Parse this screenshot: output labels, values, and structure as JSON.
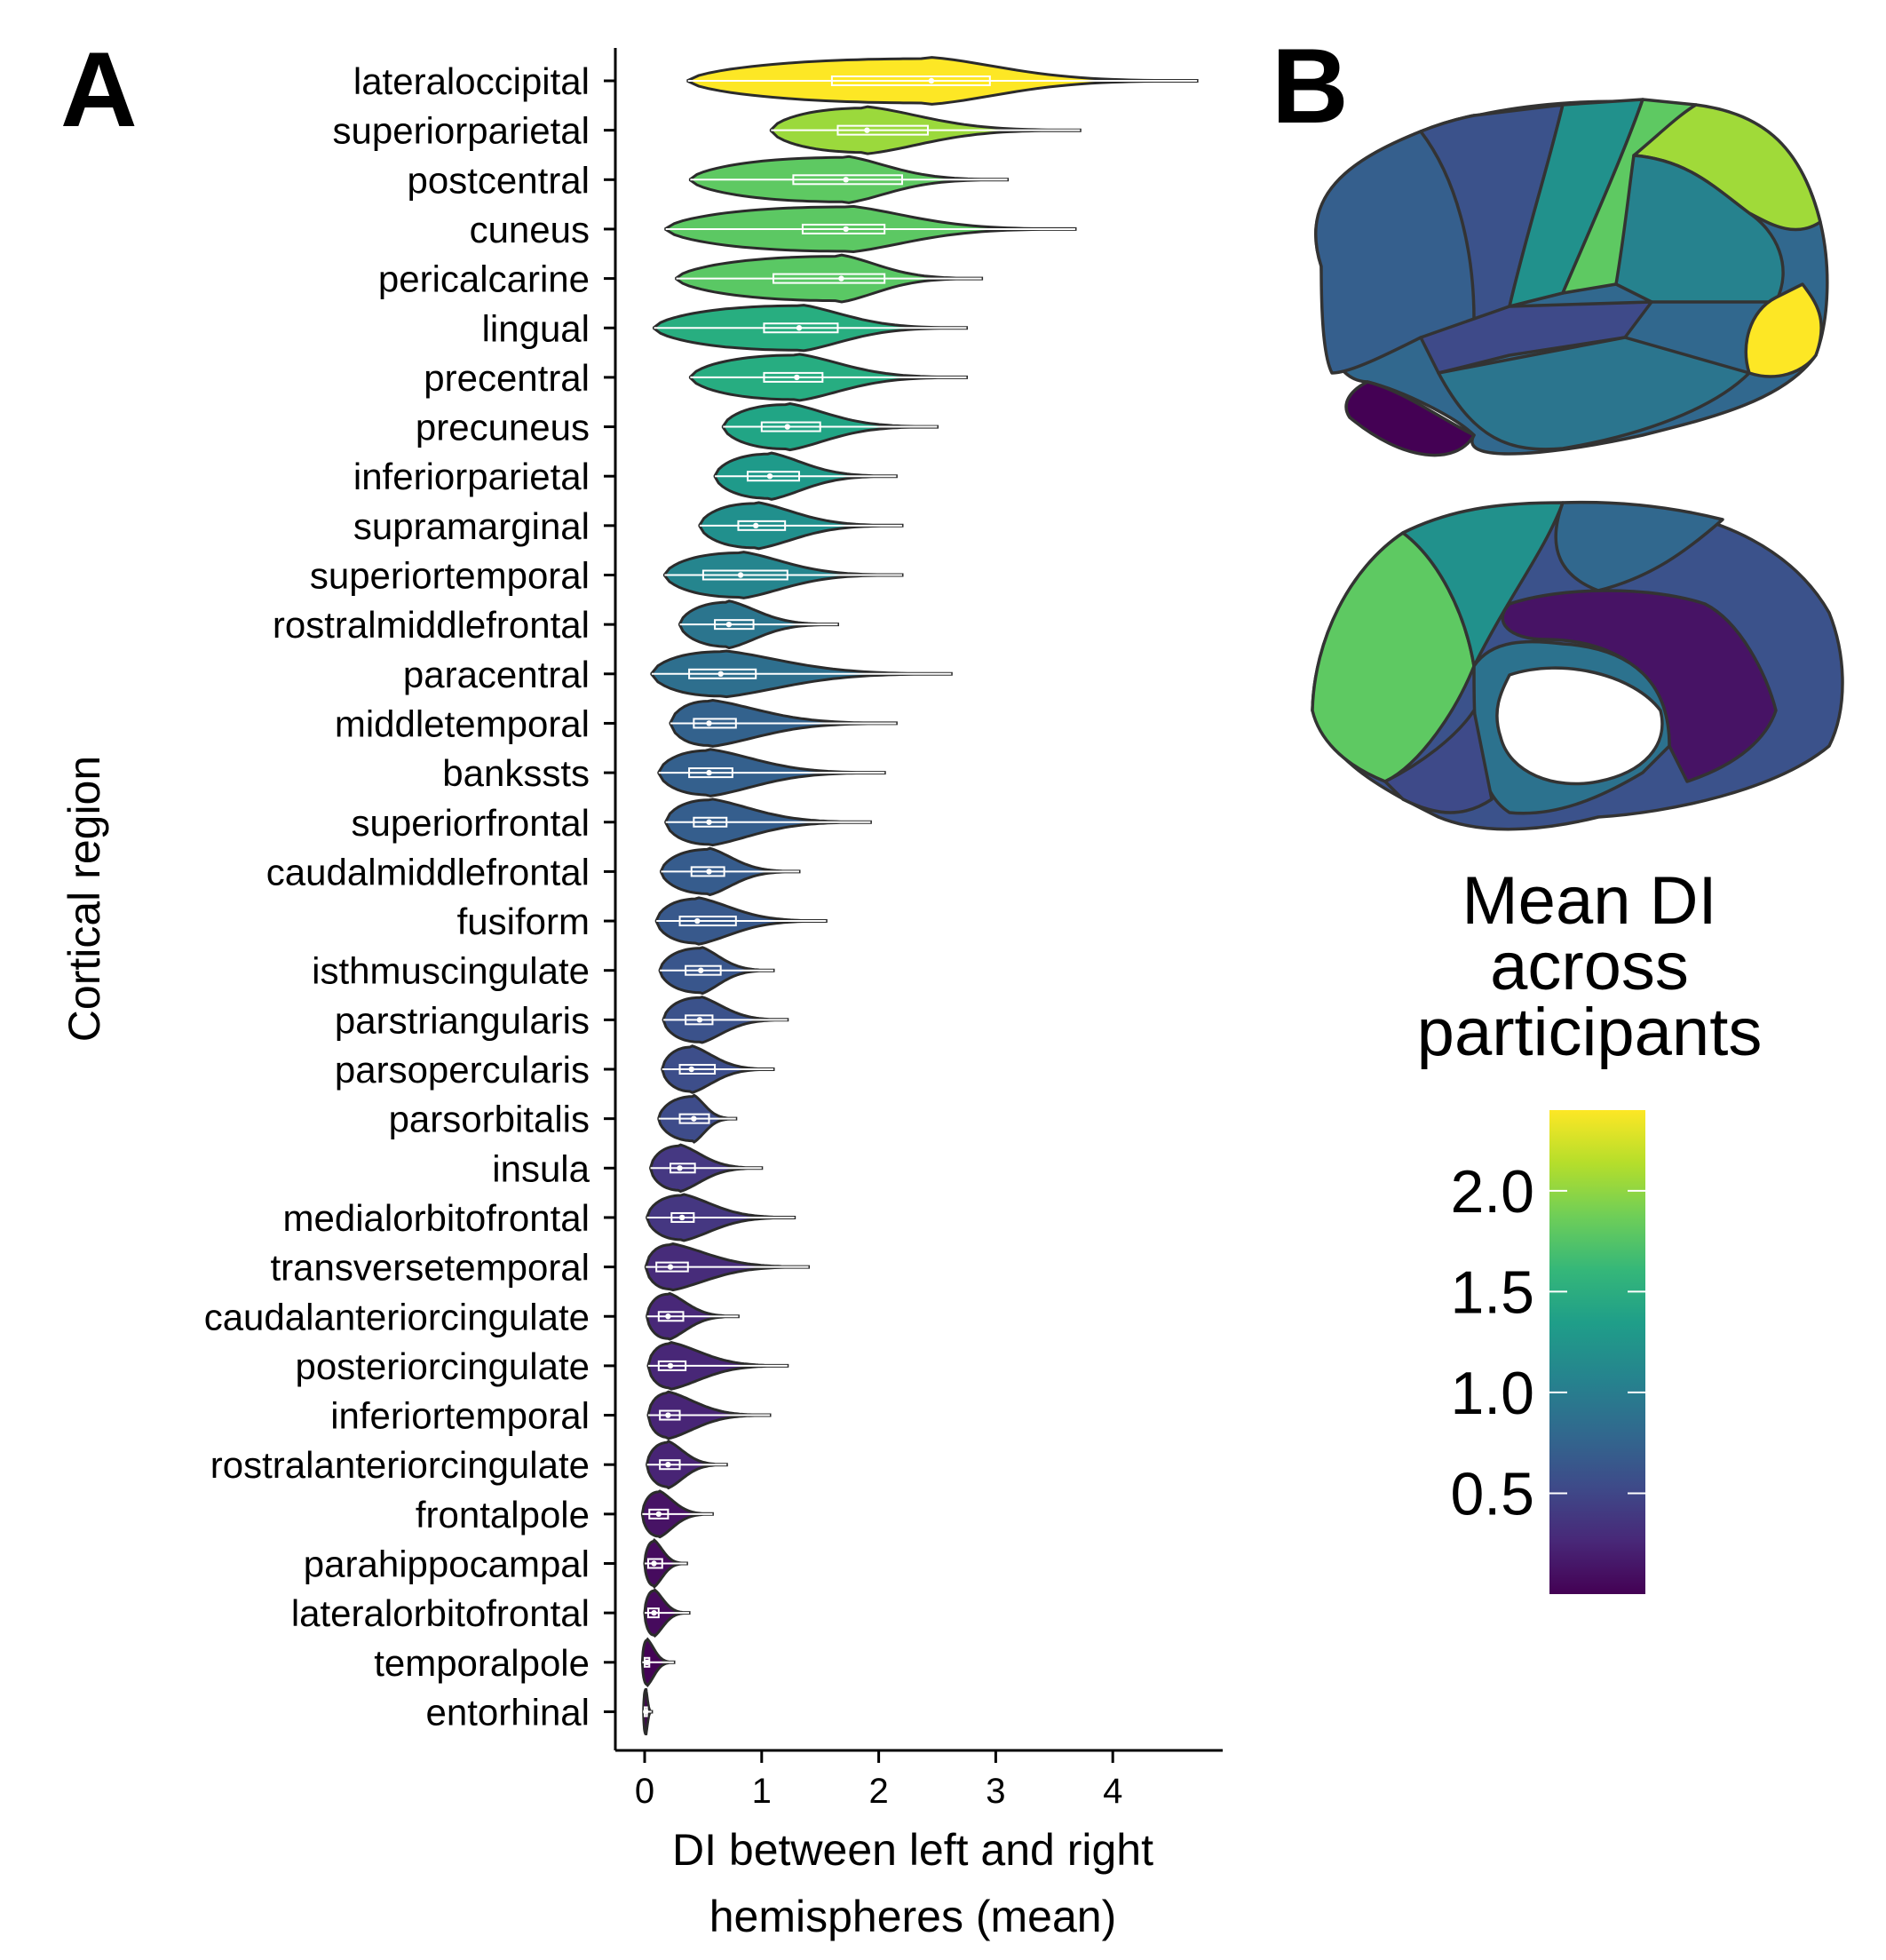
{
  "panel_a_letter": "A",
  "panel_b_letter": "B",
  "chart_data": {
    "type": "violin",
    "title": "",
    "xlabel_line1": "DI between left and right",
    "xlabel_line2": "hemispheres (mean)",
    "ylabel": "Cortical region",
    "xlim": [
      -0.25,
      4.95
    ],
    "xticks": [
      0,
      1,
      2,
      3,
      4
    ],
    "grid": false,
    "regions": [
      {
        "name": "lateraloccipital",
        "min": 0.37,
        "q1": 1.6,
        "median": 2.45,
        "q3": 2.95,
        "max": 4.72,
        "mean": 2.42,
        "color": "#fde725"
      },
      {
        "name": "superiorparietal",
        "min": 1.08,
        "q1": 1.65,
        "median": 1.9,
        "q3": 2.42,
        "max": 3.72,
        "mean": 2.08,
        "color": "#9bd93c"
      },
      {
        "name": "postcentral",
        "min": 0.39,
        "q1": 1.27,
        "median": 1.72,
        "q3": 2.2,
        "max": 3.1,
        "mean": 1.74,
        "color": "#5ec962"
      },
      {
        "name": "cuneus",
        "min": 0.18,
        "q1": 1.35,
        "median": 1.72,
        "q3": 2.05,
        "max": 3.68,
        "mean": 1.71,
        "color": "#5cc863"
      },
      {
        "name": "pericalcarine",
        "min": 0.27,
        "q1": 1.1,
        "median": 1.68,
        "q3": 2.05,
        "max": 2.88,
        "mean": 1.62,
        "color": "#5ac864"
      },
      {
        "name": "lingual",
        "min": 0.08,
        "q1": 1.02,
        "median": 1.32,
        "q3": 1.65,
        "max": 2.75,
        "mean": 1.32,
        "color": "#28ae80"
      },
      {
        "name": "precentral",
        "min": 0.39,
        "q1": 1.02,
        "median": 1.3,
        "q3": 1.52,
        "max": 2.75,
        "mean": 1.29,
        "color": "#27ad81"
      },
      {
        "name": "precuneus",
        "min": 0.67,
        "q1": 1.0,
        "median": 1.22,
        "q3": 1.5,
        "max": 2.5,
        "mean": 1.25,
        "color": "#21a585"
      },
      {
        "name": "inferiorparietal",
        "min": 0.6,
        "q1": 0.88,
        "median": 1.07,
        "q3": 1.32,
        "max": 2.15,
        "mean": 1.12,
        "color": "#1f9a8a"
      },
      {
        "name": "supramarginal",
        "min": 0.47,
        "q1": 0.8,
        "median": 0.95,
        "q3": 1.2,
        "max": 2.2,
        "mean": 1.02,
        "color": "#21908d"
      },
      {
        "name": "superiortemporal",
        "min": 0.17,
        "q1": 0.5,
        "median": 0.82,
        "q3": 1.22,
        "max": 2.2,
        "mean": 0.88,
        "color": "#25858e"
      },
      {
        "name": "rostralmiddlefrontal",
        "min": 0.3,
        "q1": 0.6,
        "median": 0.72,
        "q3": 0.93,
        "max": 1.65,
        "mean": 0.78,
        "color": "#2b758e"
      },
      {
        "name": "paracentral",
        "min": 0.06,
        "q1": 0.38,
        "median": 0.65,
        "q3": 0.95,
        "max": 2.62,
        "mean": 0.72,
        "color": "#2e6f8e"
      },
      {
        "name": "middletemporal",
        "min": 0.22,
        "q1": 0.42,
        "median": 0.55,
        "q3": 0.78,
        "max": 2.15,
        "mean": 0.62,
        "color": "#33628d"
      },
      {
        "name": "bankssts",
        "min": 0.12,
        "q1": 0.38,
        "median": 0.55,
        "q3": 0.75,
        "max": 2.05,
        "mean": 0.6,
        "color": "#34608d"
      },
      {
        "name": "superiorfrontal",
        "min": 0.18,
        "q1": 0.42,
        "median": 0.55,
        "q3": 0.7,
        "max": 1.93,
        "mean": 0.58,
        "color": "#355e8d"
      },
      {
        "name": "caudalmiddlefrontal",
        "min": 0.14,
        "q1": 0.4,
        "median": 0.55,
        "q3": 0.68,
        "max": 1.32,
        "mean": 0.56,
        "color": "#365c8d"
      },
      {
        "name": "fusiform",
        "min": 0.1,
        "q1": 0.3,
        "median": 0.45,
        "q3": 0.78,
        "max": 1.55,
        "mean": 0.52,
        "color": "#38598c"
      },
      {
        "name": "isthmuscingulate",
        "min": 0.13,
        "q1": 0.35,
        "median": 0.48,
        "q3": 0.65,
        "max": 1.1,
        "mean": 0.5,
        "color": "#39568c"
      },
      {
        "name": "parstriangularis",
        "min": 0.16,
        "q1": 0.35,
        "median": 0.47,
        "q3": 0.58,
        "max": 1.22,
        "mean": 0.48,
        "color": "#3b528b"
      },
      {
        "name": "parsopercularis",
        "min": 0.15,
        "q1": 0.3,
        "median": 0.4,
        "q3": 0.6,
        "max": 1.1,
        "mean": 0.44,
        "color": "#3d4e8a"
      },
      {
        "name": "parsorbitalis",
        "min": 0.12,
        "q1": 0.3,
        "median": 0.42,
        "q3": 0.55,
        "max": 0.78,
        "mean": 0.42,
        "color": "#3e4c8a"
      },
      {
        "name": "insula",
        "min": 0.05,
        "q1": 0.22,
        "median": 0.3,
        "q3": 0.43,
        "max": 1.0,
        "mean": 0.34,
        "color": "#453882"
      },
      {
        "name": "medialorbitofrontal",
        "min": 0.02,
        "q1": 0.23,
        "median": 0.32,
        "q3": 0.42,
        "max": 1.28,
        "mean": 0.33,
        "color": "#453781"
      },
      {
        "name": "transversetemporal",
        "min": 0.01,
        "q1": 0.1,
        "median": 0.22,
        "q3": 0.37,
        "max": 1.4,
        "mean": 0.28,
        "color": "#472c7a"
      },
      {
        "name": "caudalanteriorcingulate",
        "min": 0.02,
        "q1": 0.12,
        "median": 0.2,
        "q3": 0.33,
        "max": 0.8,
        "mean": 0.25,
        "color": "#482878"
      },
      {
        "name": "posteriorcingulate",
        "min": 0.03,
        "q1": 0.12,
        "median": 0.22,
        "q3": 0.35,
        "max": 1.22,
        "mean": 0.25,
        "color": "#482777"
      },
      {
        "name": "inferiortemporal",
        "min": 0.03,
        "q1": 0.13,
        "median": 0.2,
        "q3": 0.3,
        "max": 1.07,
        "mean": 0.24,
        "color": "#482576"
      },
      {
        "name": "rostralanteriorcingulate",
        "min": 0.02,
        "q1": 0.13,
        "median": 0.2,
        "q3": 0.3,
        "max": 0.7,
        "mean": 0.23,
        "color": "#482475"
      },
      {
        "name": "frontalpole",
        "min": -0.02,
        "q1": 0.04,
        "median": 0.12,
        "q3": 0.2,
        "max": 0.58,
        "mean": 0.15,
        "color": "#471365"
      },
      {
        "name": "parahippocampal",
        "min": 0.0,
        "q1": 0.03,
        "median": 0.08,
        "q3": 0.15,
        "max": 0.36,
        "mean": 0.1,
        "color": "#460b5e"
      },
      {
        "name": "lateralorbitofrontal",
        "min": 0.0,
        "q1": 0.03,
        "median": 0.08,
        "q3": 0.12,
        "max": 0.38,
        "mean": 0.09,
        "color": "#460a5d"
      },
      {
        "name": "temporalpole",
        "min": -0.02,
        "q1": 0.0,
        "median": 0.02,
        "q3": 0.04,
        "max": 0.25,
        "mean": 0.03,
        "color": "#440356"
      },
      {
        "name": "entorhinal",
        "min": -0.01,
        "q1": 0.0,
        "median": 0.01,
        "q3": 0.02,
        "max": 0.06,
        "mean": 0.01,
        "color": "#440154"
      }
    ],
    "colorbar": {
      "title_lines": [
        "Mean DI",
        "across",
        "participants"
      ],
      "ticks": [
        2.0,
        1.5,
        1.0,
        0.5
      ],
      "tick_labels": [
        "2.0",
        "1.5",
        "1.0",
        "0.5"
      ],
      "range": [
        0.0,
        2.4
      ],
      "palette": "viridis",
      "stops": [
        "#440154",
        "#482878",
        "#3e4a89",
        "#31688e",
        "#26828e",
        "#1f9e89",
        "#35b779",
        "#6ece58",
        "#b5de2b",
        "#fde725"
      ]
    }
  }
}
